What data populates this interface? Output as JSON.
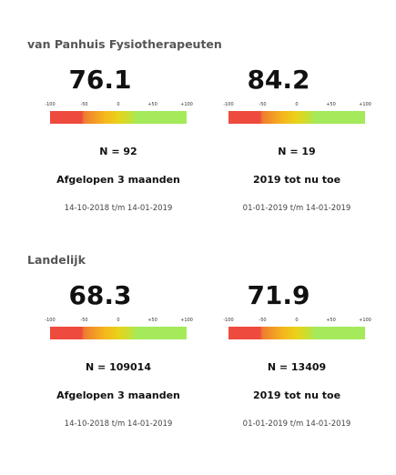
{
  "sections": [
    {
      "title": "van Panhuis Fysiotherapeuten",
      "cards": [
        {
          "score": "76.1",
          "n": "N = 92",
          "period": "Afgelopen 3 maanden",
          "range": "14-10-2018 t/m 14-01-2019"
        },
        {
          "score": "84.2",
          "n": "N = 19",
          "period": "2019 tot nu toe",
          "range": "01-01-2019 t/m 14-01-2019"
        }
      ]
    },
    {
      "title": "Landelijk",
      "cards": [
        {
          "score": "68.3",
          "n": "N = 109014",
          "period": "Afgelopen 3 maanden",
          "range": "14-10-2018 t/m 14-01-2019"
        },
        {
          "score": "71.9",
          "n": "N = 13409",
          "period": "2019 tot nu toe",
          "range": "01-01-2019 t/m 14-01-2019"
        }
      ]
    }
  ],
  "scale_ticks": [
    "-100",
    "-50",
    "0",
    "+50",
    "+100"
  ],
  "scale_colors": {
    "red": "#ee4a3e",
    "orange": "#f5b71c",
    "yellow": "#e9d21a",
    "green": "#a4ea5b"
  }
}
